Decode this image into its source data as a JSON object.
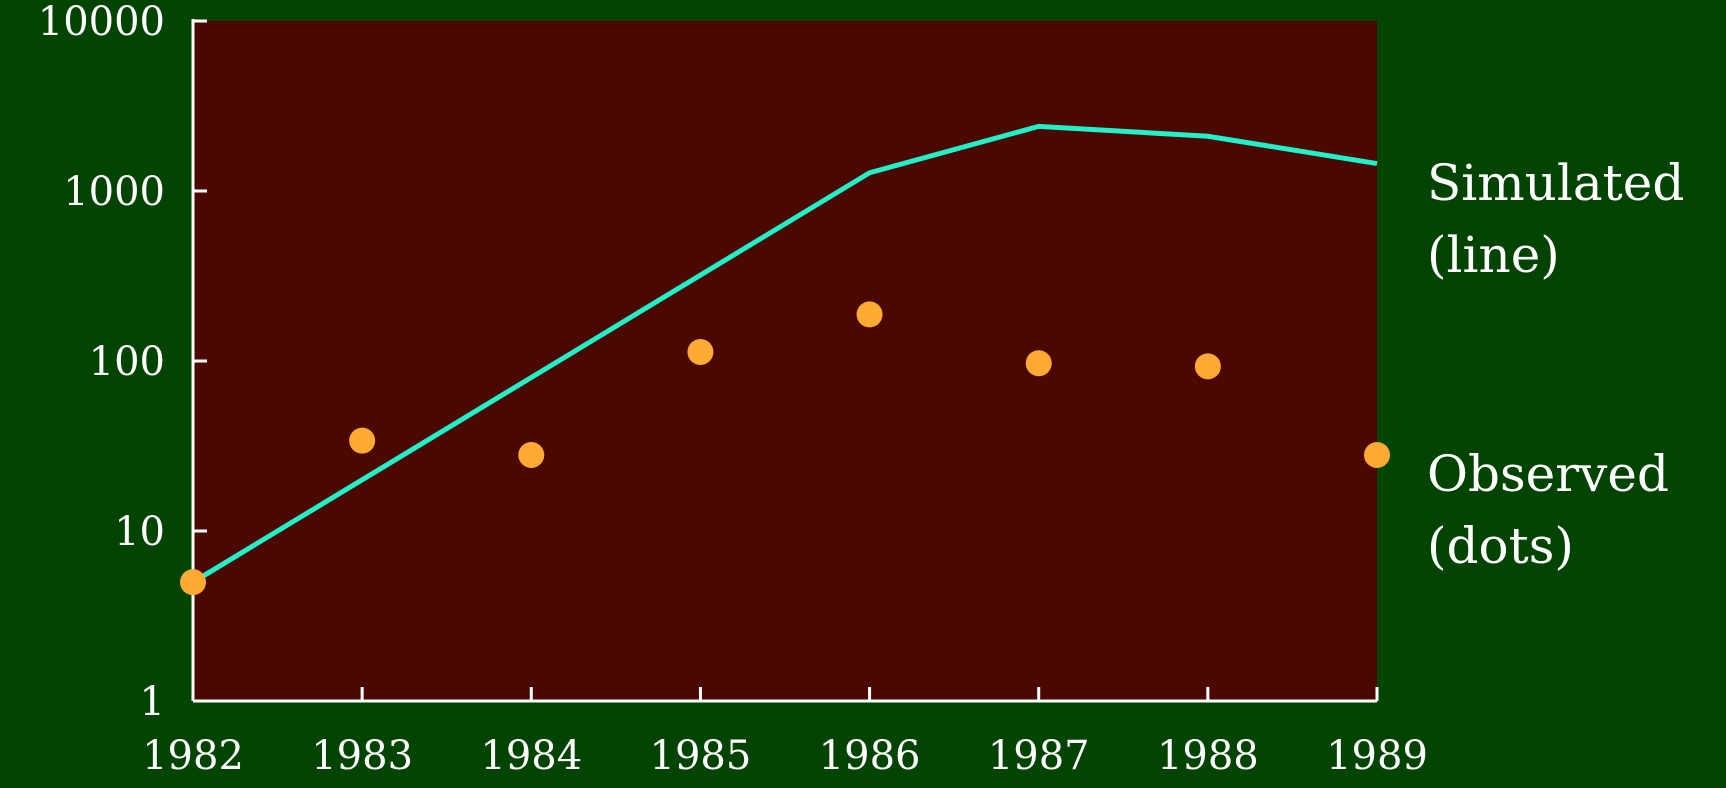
{
  "chart_data": {
    "type": "line",
    "x": [
      1982,
      1983,
      1984,
      1985,
      1986,
      1987,
      1988,
      1989
    ],
    "series": [
      {
        "name": "Simulated (line)",
        "color": "#22f0c8",
        "mode": "line",
        "values": [
          5,
          20,
          80,
          320,
          1280,
          2400,
          2100,
          1450
        ]
      },
      {
        "name": "Observed (dots)",
        "color": "#ffaa33",
        "mode": "markers",
        "values": [
          5,
          34,
          28,
          113,
          188,
          97,
          93,
          28
        ]
      }
    ],
    "xlim": [
      1982,
      1989
    ],
    "xticks": [
      1982,
      1983,
      1984,
      1985,
      1986,
      1987,
      1988,
      1989
    ],
    "ylim": [
      1,
      10000
    ],
    "yticks": [
      1,
      10,
      100,
      1000,
      10000
    ],
    "ylog": true,
    "background": "#004400",
    "plot_background": "#4a0800",
    "axis_color": "#ffffff"
  }
}
